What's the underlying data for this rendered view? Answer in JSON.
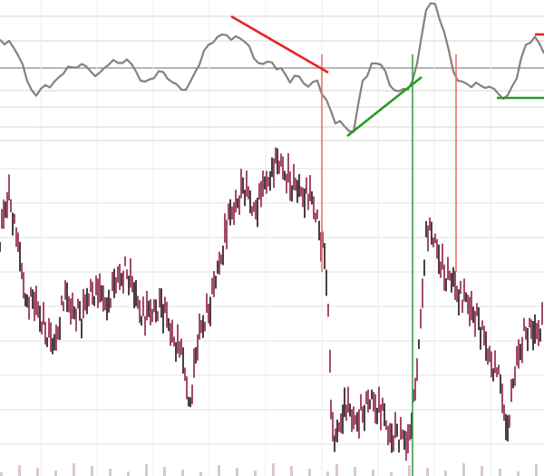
{
  "chart_data": [
    {
      "type": "line",
      "panel": "oscillator",
      "title": "",
      "xlabel": "",
      "ylabel": "",
      "grid": true,
      "line_color": "#8a7f7a",
      "zero_line": 0,
      "ylim": [
        -80,
        80
      ],
      "x": [
        0,
        1,
        2,
        3,
        4,
        5,
        6,
        7,
        8,
        9,
        10,
        11,
        12,
        13,
        14,
        15,
        16,
        17,
        18,
        19,
        20,
        21,
        22,
        23,
        24,
        25,
        26,
        27,
        28,
        29,
        30,
        31,
        32,
        33,
        34,
        35,
        36,
        37,
        38,
        39,
        40,
        41,
        42,
        43,
        44,
        45,
        46,
        47,
        48,
        49,
        50,
        51,
        52,
        53,
        54,
        55,
        56,
        57,
        58,
        59,
        60
      ],
      "values": [
        30,
        30,
        15,
        -15,
        -30,
        -20,
        -15,
        -5,
        0,
        5,
        -5,
        -5,
        5,
        5,
        10,
        -5,
        -15,
        -10,
        -5,
        -15,
        -25,
        -15,
        5,
        25,
        35,
        35,
        35,
        30,
        10,
        5,
        5,
        0,
        -15,
        -10,
        -20,
        -15,
        -35,
        -60,
        -65,
        -70,
        -15,
        5,
        5,
        -20,
        -25,
        -25,
        5,
        65,
        70,
        40,
        -5,
        -15,
        -20,
        -20,
        -20,
        -30,
        -30,
        -10,
        25,
        35,
        15
      ]
    },
    {
      "type": "bar",
      "panel": "price",
      "title": "",
      "xlabel": "",
      "ylabel": "",
      "grid": true,
      "bar_colors": [
        "#1a1014",
        "#8c1f45"
      ],
      "ylim": [
        0,
        100
      ],
      "x": [
        0,
        1,
        2,
        3,
        4,
        5,
        6,
        7,
        8,
        9,
        10,
        11,
        12,
        13,
        14,
        15,
        16,
        17,
        18,
        19,
        20,
        21,
        22,
        23,
        24,
        25,
        26,
        27,
        28,
        29,
        30,
        31,
        32,
        33,
        34,
        35,
        36,
        36.5,
        37,
        38,
        39,
        40,
        41,
        42,
        43,
        44,
        45,
        46,
        47,
        48,
        49,
        50,
        51,
        52,
        53,
        54,
        55,
        56,
        57,
        58,
        59,
        60
      ],
      "values": [
        72,
        87,
        67,
        53,
        50,
        44,
        38,
        53,
        50,
        47,
        57,
        53,
        53,
        58,
        62,
        53,
        47,
        50,
        50,
        43,
        35,
        22,
        42,
        50,
        61,
        75,
        82,
        87,
        81,
        85,
        94,
        93,
        89,
        86,
        85,
        78,
        61,
        19,
        8,
        22,
        14,
        19,
        22,
        19,
        11,
        11,
        10,
        28,
        75,
        69,
        61,
        58,
        53,
        50,
        44,
        36,
        28,
        14,
        33,
        44,
        42,
        47
      ]
    },
    {
      "type": "annotations",
      "panel": "oscillator",
      "trendlines": [
        {
          "color": "#e8221e",
          "from": [
            25.5,
            57
          ],
          "to": [
            36.2,
            -5
          ]
        },
        {
          "color": "#2a9a22",
          "from": [
            38.3,
            -75
          ],
          "to": [
            46.5,
            -10
          ]
        },
        {
          "color": "#2a9a22",
          "from": [
            54.8,
            -33
          ],
          "to": [
            60,
            -33
          ]
        },
        {
          "color": "#e8221e",
          "from": [
            59,
            37
          ],
          "to": [
            60,
            37
          ]
        }
      ],
      "vertical_markers": [
        {
          "color": "#f07070",
          "x": 35.5
        },
        {
          "color": "#3aa040",
          "x": 45.5
        },
        {
          "color": "#f07070",
          "x": 50.3
        }
      ]
    }
  ]
}
